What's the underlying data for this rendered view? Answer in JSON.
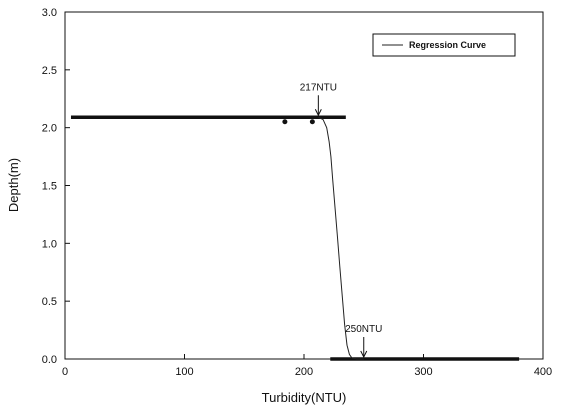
{
  "chart_data": {
    "type": "line",
    "title": "",
    "xlabel": "Turbidity(NTU)",
    "ylabel": "Depth(m)",
    "xlim": [
      0,
      400
    ],
    "ylim": [
      0,
      3.0
    ],
    "xticks": [
      0,
      100,
      200,
      300,
      400
    ],
    "xtick_labels": [
      "0",
      "100",
      "200",
      "300",
      "400"
    ],
    "yticks": [
      0.0,
      0.5,
      1.0,
      1.5,
      2.0,
      2.5,
      3.0
    ],
    "ytick_labels": [
      "0.0",
      "0.5",
      "1.0",
      "1.5",
      "2.0",
      "2.5",
      "3.0"
    ],
    "grid": false,
    "legend_position": "top-right",
    "series": [
      {
        "name": "",
        "kind": "observed",
        "segments": [
          {
            "x": [
              5,
              235
            ],
            "y": [
              2.09,
              2.09
            ]
          },
          {
            "x": [
              222,
              380
            ],
            "y": [
              0.0,
              0.0
            ]
          }
        ]
      },
      {
        "name": "Regression Curve",
        "kind": "regression",
        "x": [
          212,
          216,
          219,
          221,
          222.5,
          224,
          226,
          228,
          230,
          232,
          234,
          236,
          238,
          240,
          244,
          250
        ],
        "y": [
          2.09,
          2.07,
          2.0,
          1.88,
          1.75,
          1.55,
          1.3,
          1.05,
          0.8,
          0.55,
          0.3,
          0.12,
          0.04,
          0.01,
          0.0,
          0.0
        ]
      }
    ],
    "annotations": [
      {
        "text": "217NTU",
        "x": 212,
        "y": 2.09
      },
      {
        "text": "250NTU",
        "x": 250,
        "y": 0.0
      }
    ]
  }
}
